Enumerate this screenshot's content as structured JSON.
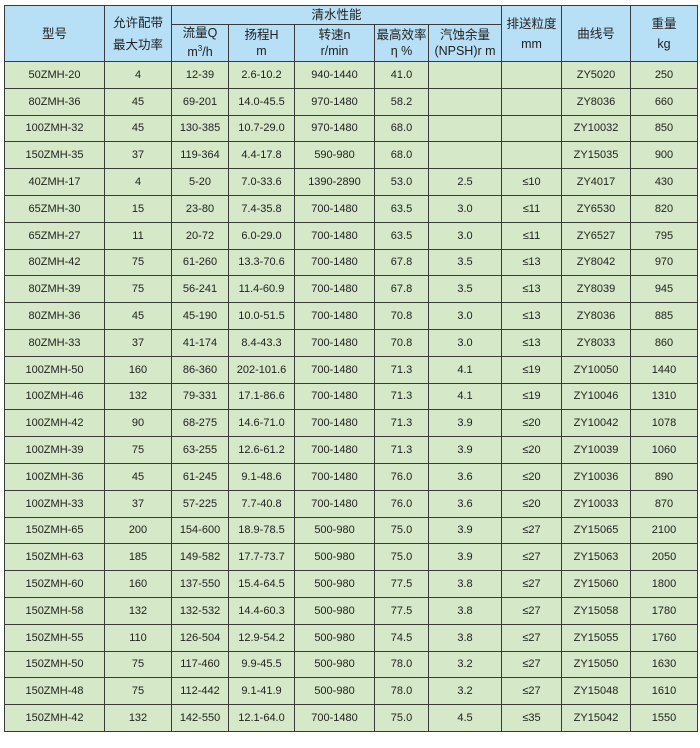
{
  "header": {
    "model": "型号",
    "power_line1": "允许配带",
    "power_line2": "最大功率",
    "performance_group": "清水性能",
    "flow_line1": "流量Q",
    "flow_unit_base": "m",
    "flow_unit_sup": "3",
    "flow_unit_tail": "/h",
    "head_line1": "扬程H",
    "head_line2": "m",
    "speed_line1": "转速n",
    "speed_line2": "r/min",
    "eff_line1": "最高效率",
    "eff_line2": "η %",
    "npsh_line1": "汽蚀余量",
    "npsh_line2": "(NPSH)r m",
    "particle_line1": "排送粒度",
    "particle_line2": "mm",
    "curve": "曲线号",
    "weight_line1": "重量",
    "weight_line2": "kg"
  },
  "colors": {
    "header_bg": "#b7dff5",
    "row_bg": "#d5e8c7",
    "border": "#3a3a3a"
  },
  "rows": [
    [
      "50ZMH-20",
      "4",
      "12-39",
      "2.6-10.2",
      "940-1440",
      "41.0",
      "",
      "",
      "ZY5020",
      "250"
    ],
    [
      "80ZMH-36",
      "45",
      "69-201",
      "14.0-45.5",
      "970-1480",
      "58.2",
      "",
      "",
      "ZY8036",
      "660"
    ],
    [
      "100ZMH-32",
      "45",
      "130-385",
      "10.7-29.0",
      "970-1480",
      "68.0",
      "",
      "",
      "ZY10032",
      "850"
    ],
    [
      "150ZMH-35",
      "37",
      "119-364",
      "4.4-17.8",
      "590-980",
      "68.0",
      "",
      "",
      "ZY15035",
      "900"
    ],
    [
      "40ZMH-17",
      "4",
      "5-20",
      "7.0-33.6",
      "1390-2890",
      "53.0",
      "2.5",
      "≤10",
      "ZY4017",
      "430"
    ],
    [
      "65ZMH-30",
      "15",
      "23-80",
      "7.4-35.8",
      "700-1480",
      "63.5",
      "3.0",
      "≤11",
      "ZY6530",
      "820"
    ],
    [
      "65ZMH-27",
      "11",
      "20-72",
      "6.0-29.0",
      "700-1480",
      "63.5",
      "3.0",
      "≤11",
      "ZY6527",
      "795"
    ],
    [
      "80ZMH-42",
      "75",
      "61-260",
      "13.3-70.6",
      "700-1480",
      "67.8",
      "3.5",
      "≤13",
      "ZY8042",
      "970"
    ],
    [
      "80ZMH-39",
      "75",
      "56-241",
      "11.4-60.9",
      "700-1480",
      "67.8",
      "3.5",
      "≤13",
      "ZY8039",
      "945"
    ],
    [
      "80ZMH-36",
      "45",
      "45-190",
      "10.0-51.5",
      "700-1480",
      "70.8",
      "3.0",
      "≤13",
      "ZY8036",
      "885"
    ],
    [
      "80ZMH-33",
      "37",
      "41-174",
      "8.4-43.3",
      "700-1480",
      "70.8",
      "3.0",
      "≤13",
      "ZY8033",
      "860"
    ],
    [
      "100ZMH-50",
      "160",
      "86-360",
      "202-101.6",
      "700-1480",
      "71.3",
      "4.1",
      "≤19",
      "ZY10050",
      "1440"
    ],
    [
      "100ZMH-46",
      "132",
      "79-331",
      "17.1-86.6",
      "700-1480",
      "71.3",
      "4.1",
      "≤19",
      "ZY10046",
      "1310"
    ],
    [
      "100ZMH-42",
      "90",
      "68-275",
      "14.6-71.0",
      "700-1480",
      "71.3",
      "3.9",
      "≤20",
      "ZY10042",
      "1078"
    ],
    [
      "100ZMH-39",
      "75",
      "63-255",
      "12.6-61.2",
      "700-1480",
      "71.3",
      "3.9",
      "≤20",
      "ZY10039",
      "1060"
    ],
    [
      "100ZMH-36",
      "45",
      "61-245",
      "9.1-48.6",
      "700-1480",
      "76.0",
      "3.6",
      "≤20",
      "ZY10036",
      "890"
    ],
    [
      "100ZMH-33",
      "37",
      "57-225",
      "7.7-40.8",
      "700-1480",
      "76.0",
      "3.6",
      "≤20",
      "ZY10033",
      "870"
    ],
    [
      "150ZMH-65",
      "200",
      "154-600",
      "18.9-78.5",
      "500-980",
      "75.0",
      "3.9",
      "≤27",
      "ZY15065",
      "2100"
    ],
    [
      "150ZMH-63",
      "185",
      "149-582",
      "17.7-73.7",
      "500-980",
      "75.0",
      "3.9",
      "≤27",
      "ZY15063",
      "2050"
    ],
    [
      "150ZMH-60",
      "160",
      "137-550",
      "15.4-64.5",
      "500-980",
      "77.5",
      "3.8",
      "≤27",
      "ZY15060",
      "1800"
    ],
    [
      "150ZMH-58",
      "132",
      "132-532",
      "14.4-60.3",
      "500-980",
      "77.5",
      "3.8",
      "≤27",
      "ZY15058",
      "1780"
    ],
    [
      "150ZMH-55",
      "110",
      "126-504",
      "12.9-54.2",
      "500-980",
      "74.5",
      "3.8",
      "≤27",
      "ZY15055",
      "1760"
    ],
    [
      "150ZMH-50",
      "75",
      "117-460",
      "9.9-45.5",
      "500-980",
      "78.0",
      "3.2",
      "≤27",
      "ZY15050",
      "1630"
    ],
    [
      "150ZMH-48",
      "75",
      "112-442",
      "9.1-41.9",
      "500-980",
      "78.0",
      "3.2",
      "≤27",
      "ZY15048",
      "1610"
    ],
    [
      "150ZMH-42",
      "132",
      "142-550",
      "12.1-64.0",
      "700-1480",
      "75.0",
      "4.5",
      "≤35",
      "ZY15042",
      "1550"
    ]
  ]
}
